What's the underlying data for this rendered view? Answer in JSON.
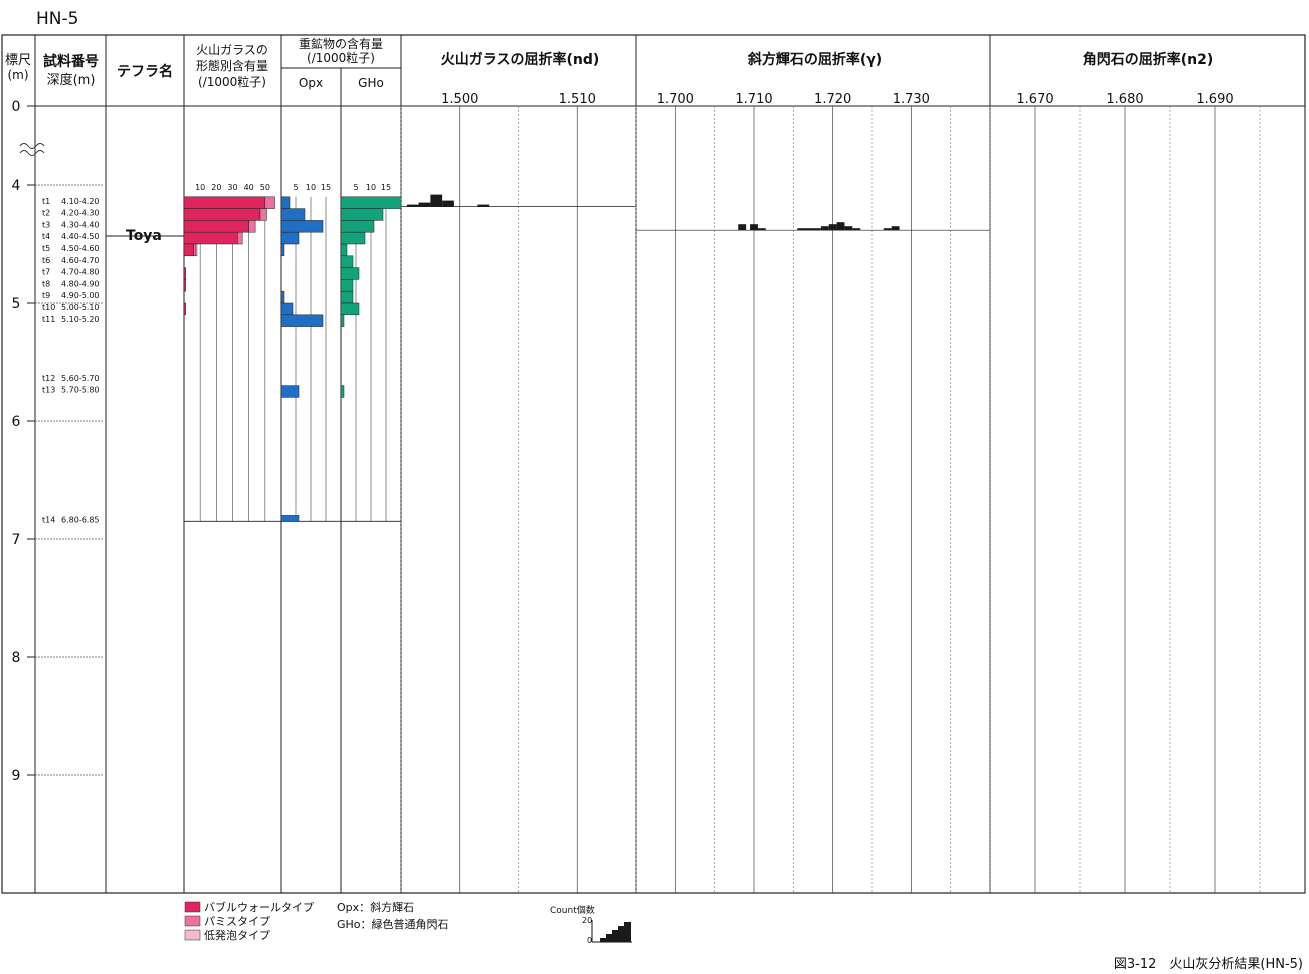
{
  "title": "HN-5",
  "caption": "図3-12　火山灰分析結果(HN-5)",
  "headers": {
    "depth_line1": "標尺",
    "depth_line2": "(m)",
    "sample_line1": "試料番号",
    "sample_line2": "深度(m)",
    "tephra": "テフラ名",
    "glass_line1": "火山ガラスの",
    "glass_line2": "形態別含有量",
    "glass_line3": "(/1000粒子)",
    "heavy_line1": "重鉱物の含有量",
    "heavy_line2": "(/1000粒子)",
    "opx": "Opx",
    "gho": "GHo",
    "ri_glass": "火山ガラスの屈折率(nd)",
    "ri_opx": "斜方輝石の屈折率(γ)",
    "ri_ho": "角閃石の屈折率(n2)"
  },
  "tephra_label": "Toya",
  "legend": {
    "bubble": "バブルウォールタイプ",
    "pumice": "パミスタイプ",
    "low": "低発泡タイプ",
    "opx_note": "Opx：斜方輝石",
    "gho_note": "GHo：緑色普通角閃石",
    "count_label": "Count個数",
    "count_max": "20",
    "count_min": "0"
  },
  "colors": {
    "bubble": "#e0245e",
    "pumice": "#ee6fa0",
    "low": "#f6b8cc",
    "opx": "#1f6fc5",
    "gho": "#12a37a",
    "hist": "#1a1a1a"
  },
  "chart_data": {
    "type": "bar",
    "depth_axis": {
      "label": "標尺(m)",
      "ticks": [
        0,
        4,
        5,
        6,
        7,
        8,
        9
      ],
      "break_after": 0
    },
    "glass_axis": {
      "ticks": [
        "10",
        "20",
        "30",
        "40",
        "50"
      ],
      "max": 60
    },
    "opx_axis": {
      "ticks": [
        "5",
        "10",
        "15"
      ],
      "max": 20
    },
    "gho_axis": {
      "ticks": [
        "5",
        "10",
        "15"
      ],
      "max": 20
    },
    "samples": [
      {
        "id": "t1",
        "range": "4.10-4.20",
        "top": 4.1,
        "bottom": 4.2,
        "bubble": 50,
        "pumice": 6,
        "low": 0,
        "opx": 3,
        "gho": 20
      },
      {
        "id": "t2",
        "range": "4.20-4.30",
        "top": 4.2,
        "bottom": 4.3,
        "bubble": 47,
        "pumice": 4,
        "low": 0,
        "opx": 8,
        "gho": 14
      },
      {
        "id": "t3",
        "range": "4.30-4.40",
        "top": 4.3,
        "bottom": 4.4,
        "bubble": 40,
        "pumice": 4,
        "low": 0,
        "opx": 14,
        "gho": 11
      },
      {
        "id": "t4",
        "range": "4.40-4.50",
        "top": 4.4,
        "bottom": 4.5,
        "bubble": 33,
        "pumice": 3,
        "low": 0,
        "opx": 6,
        "gho": 8
      },
      {
        "id": "t5",
        "range": "4.50-4.60",
        "top": 4.5,
        "bottom": 4.6,
        "bubble": 6,
        "pumice": 1,
        "low": 1,
        "opx": 1,
        "gho": 2
      },
      {
        "id": "t6",
        "range": "4.60-4.70",
        "top": 4.6,
        "bottom": 4.7,
        "bubble": 0,
        "pumice": 0,
        "low": 0,
        "opx": 0,
        "gho": 4
      },
      {
        "id": "t7",
        "range": "4.70-4.80",
        "top": 4.7,
        "bottom": 4.8,
        "bubble": 1,
        "pumice": 0,
        "low": 0,
        "opx": 0,
        "gho": 6
      },
      {
        "id": "t8",
        "range": "4.80-4.90",
        "top": 4.8,
        "bottom": 4.9,
        "bubble": 1,
        "pumice": 0,
        "low": 0,
        "opx": 0,
        "gho": 4
      },
      {
        "id": "t9",
        "range": "4.90-5.00",
        "top": 4.9,
        "bottom": 5.0,
        "bubble": 0,
        "pumice": 0,
        "low": 0,
        "opx": 1,
        "gho": 4
      },
      {
        "id": "t10",
        "range": "5.00-5.10",
        "top": 5.0,
        "bottom": 5.1,
        "bubble": 1,
        "pumice": 0,
        "low": 0,
        "opx": 4,
        "gho": 6
      },
      {
        "id": "t11",
        "range": "5.10-5.20",
        "top": 5.1,
        "bottom": 5.2,
        "bubble": 0,
        "pumice": 0,
        "low": 0,
        "opx": 14,
        "gho": 1
      },
      {
        "id": "t12",
        "range": "5.60-5.70",
        "top": 5.6,
        "bottom": 5.7,
        "bubble": 0,
        "pumice": 0,
        "low": 0,
        "opx": 0,
        "gho": 0
      },
      {
        "id": "t13",
        "range": "5.70-5.80",
        "top": 5.7,
        "bottom": 5.8,
        "bubble": 0,
        "pumice": 0,
        "low": 0,
        "opx": 6,
        "gho": 1
      },
      {
        "id": "t14",
        "range": "6.80-6.85",
        "top": 6.8,
        "bottom": 6.85,
        "bubble": 0,
        "pumice": 0,
        "low": 0,
        "opx": 6,
        "gho": 0
      }
    ],
    "tephra": {
      "name": "Toya",
      "depth": 4.5
    },
    "refractive_glass": {
      "axis_ticks": [
        "1.500",
        "1.510"
      ],
      "range": [
        1.495,
        1.515
      ],
      "sample": "t1",
      "histogram": [
        {
          "x": 1.496,
          "count": 1
        },
        {
          "x": 1.497,
          "count": 2
        },
        {
          "x": 1.498,
          "count": 6
        },
        {
          "x": 1.499,
          "count": 3
        },
        {
          "x": 1.502,
          "count": 1
        }
      ]
    },
    "refractive_opx": {
      "axis_ticks": [
        "1.700",
        "1.710",
        "1.720",
        "1.730"
      ],
      "range": [
        1.695,
        1.74
      ],
      "sample": "t3",
      "histogram": [
        {
          "x": 1.7085,
          "count": 3
        },
        {
          "x": 1.71,
          "count": 3
        },
        {
          "x": 1.711,
          "count": 1
        },
        {
          "x": 1.716,
          "count": 1
        },
        {
          "x": 1.717,
          "count": 1
        },
        {
          "x": 1.718,
          "count": 1
        },
        {
          "x": 1.719,
          "count": 2
        },
        {
          "x": 1.72,
          "count": 3
        },
        {
          "x": 1.721,
          "count": 4
        },
        {
          "x": 1.722,
          "count": 2
        },
        {
          "x": 1.723,
          "count": 1
        },
        {
          "x": 1.727,
          "count": 1
        },
        {
          "x": 1.728,
          "count": 2
        }
      ]
    },
    "refractive_ho": {
      "axis_ticks": [
        "1.670",
        "1.680",
        "1.690"
      ],
      "range": [
        1.665,
        1.7
      ],
      "histogram": []
    }
  }
}
